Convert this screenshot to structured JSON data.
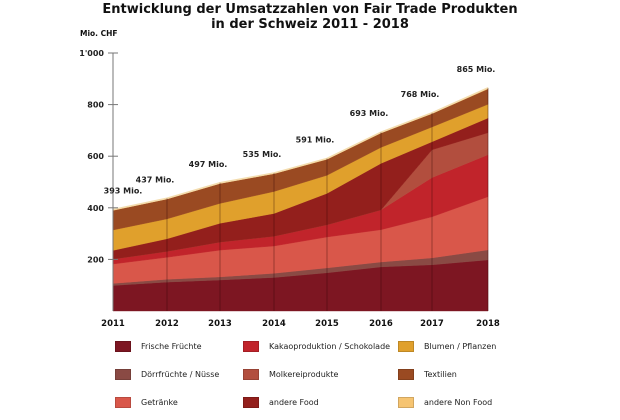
{
  "chart_data": {
    "type": "area",
    "stacked": true,
    "title": "Entwicklung der Umsatzzahlen von Fair Trade Produkten",
    "subtitle": "in der Schweiz 2011 - 2018",
    "xlabel": "",
    "ylabel": "Mio. CHF",
    "ylim": [
      0,
      1000
    ],
    "yticks": [
      200,
      400,
      600,
      800,
      1000
    ],
    "ytick_labels": [
      "200",
      "400",
      "600",
      "800",
      "1'000"
    ],
    "categories": [
      "2011",
      "2012",
      "2013",
      "2014",
      "2015",
      "2016",
      "2017",
      "2018"
    ],
    "totals": [
      393,
      437,
      497,
      535,
      591,
      693,
      768,
      865
    ],
    "total_labels": [
      "393 Mio.",
      "437 Mio.",
      "497 Mio.",
      "535 Mio.",
      "591 Mio.",
      "693 Mio.",
      "768 Mio.",
      "865 Mio."
    ],
    "grid": false,
    "legend_position": "bottom",
    "series": [
      {
        "name": "Frische Früchte",
        "color": "#7d1622",
        "values": [
          99,
          112,
          120,
          130,
          148,
          171,
          179,
          198
        ]
      },
      {
        "name": "Dörrfrüchte / Nüsse",
        "color": "#8a4a44",
        "values": [
          8,
          11,
          12,
          16,
          19,
          19,
          27,
          39
        ]
      },
      {
        "name": "Getränke",
        "color": "#d9574a",
        "values": [
          75,
          85,
          104,
          106,
          120,
          125,
          159,
          206
        ]
      },
      {
        "name": "Kakaoproduktion / Schokolade",
        "color": "#c1242b",
        "values": [
          19,
          23,
          31,
          38,
          47,
          77,
          152,
          163
        ]
      },
      {
        "name": "Molkereiprodukte",
        "color": "#b24e3e",
        "values": [
          0,
          0,
          0,
          0,
          0,
          0,
          108,
          85
        ]
      },
      {
        "name": "andere Food",
        "color": "#931f1c",
        "values": [
          34,
          49,
          73,
          88,
          122,
          180,
          31,
          57
        ]
      },
      {
        "name": "Blumen / Pflanzen",
        "color": "#e0a02c",
        "values": [
          79,
          77,
          77,
          85,
          70,
          62,
          57,
          53
        ]
      },
      {
        "name": "Textilien",
        "color": "#9a4a22",
        "values": [
          76,
          77,
          77,
          69,
          62,
          56,
          52,
          60
        ]
      },
      {
        "name": "andere Non Food",
        "color": "#f6c471",
        "values": [
          3,
          3,
          3,
          3,
          3,
          3,
          3,
          4
        ]
      }
    ],
    "legend_order": [
      "Frische Früchte",
      "Kakaoproduktion / Schokolade",
      "Blumen / Pflanzen",
      "Dörrfrüchte / Nüsse",
      "Molkereiprodukte",
      "Textilien",
      "Getränke",
      "andere Food",
      "andere Non Food"
    ]
  }
}
